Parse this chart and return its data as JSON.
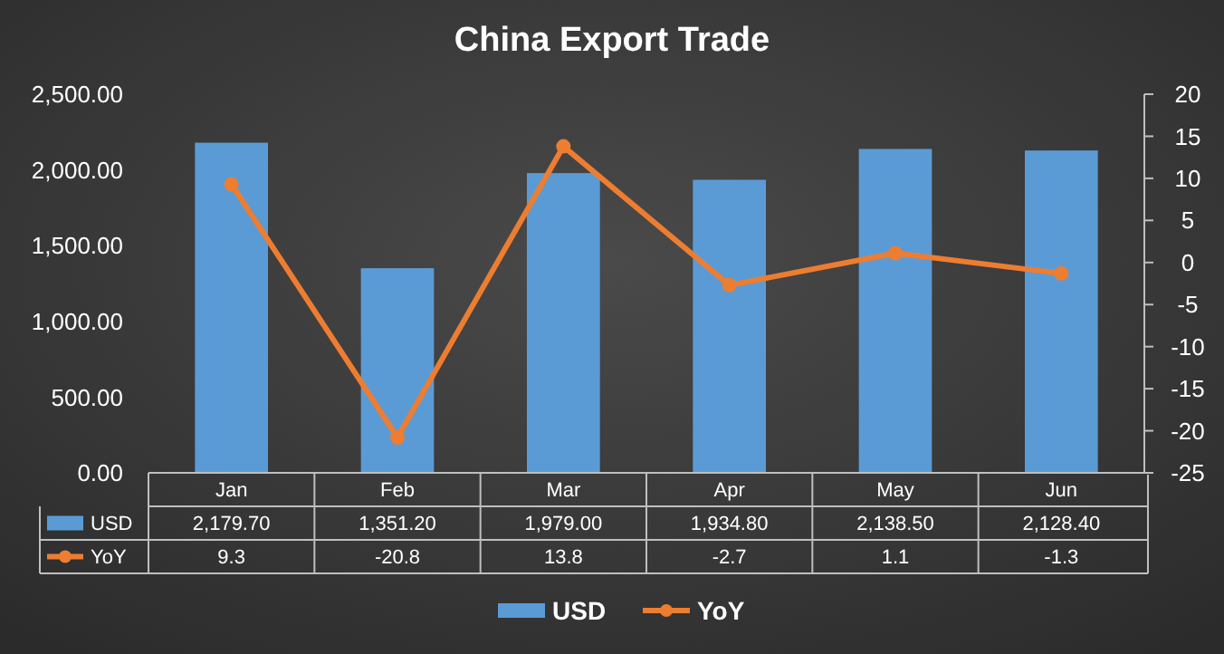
{
  "chart_data": {
    "type": "bar",
    "title": "China  Export  Trade",
    "categories": [
      "Jan",
      "Feb",
      "Mar",
      "Apr",
      "May",
      "Jun"
    ],
    "series": [
      {
        "name": "USD",
        "color": "#5b9bd5",
        "values": [
          2179.7,
          1351.2,
          1979.0,
          1934.8,
          2138.5,
          2128.4
        ],
        "value_labels": [
          "2,179.70",
          "1,351.20",
          "1,979.00",
          "1,934.80",
          "2,138.50",
          "2,128.40"
        ]
      },
      {
        "name": "YoY",
        "type": "line",
        "axis": "y2",
        "color": "#ed7d31",
        "values": [
          9.3,
          -20.8,
          13.8,
          -2.7,
          1.1,
          -1.3
        ],
        "value_labels": [
          "9.3",
          "-20.8",
          "13.8",
          "-2.7",
          "1.1",
          "-1.3"
        ]
      }
    ],
    "ylim": [
      0,
      2500
    ],
    "yticks": [
      {
        "value": 0,
        "label": "0.00"
      },
      {
        "value": 500,
        "label": "500.00"
      },
      {
        "value": 1000,
        "label": "1,000.00"
      },
      {
        "value": 1500,
        "label": "1,500.00"
      },
      {
        "value": 2000,
        "label": "2,000.00"
      },
      {
        "value": 2500,
        "label": "2,500.00"
      }
    ],
    "y2lim": [
      -25,
      20
    ],
    "y2ticks": [
      -25,
      -20,
      -15,
      -10,
      -5,
      0,
      5,
      10,
      15,
      20
    ],
    "legend": "bottom",
    "marker": "circle"
  }
}
